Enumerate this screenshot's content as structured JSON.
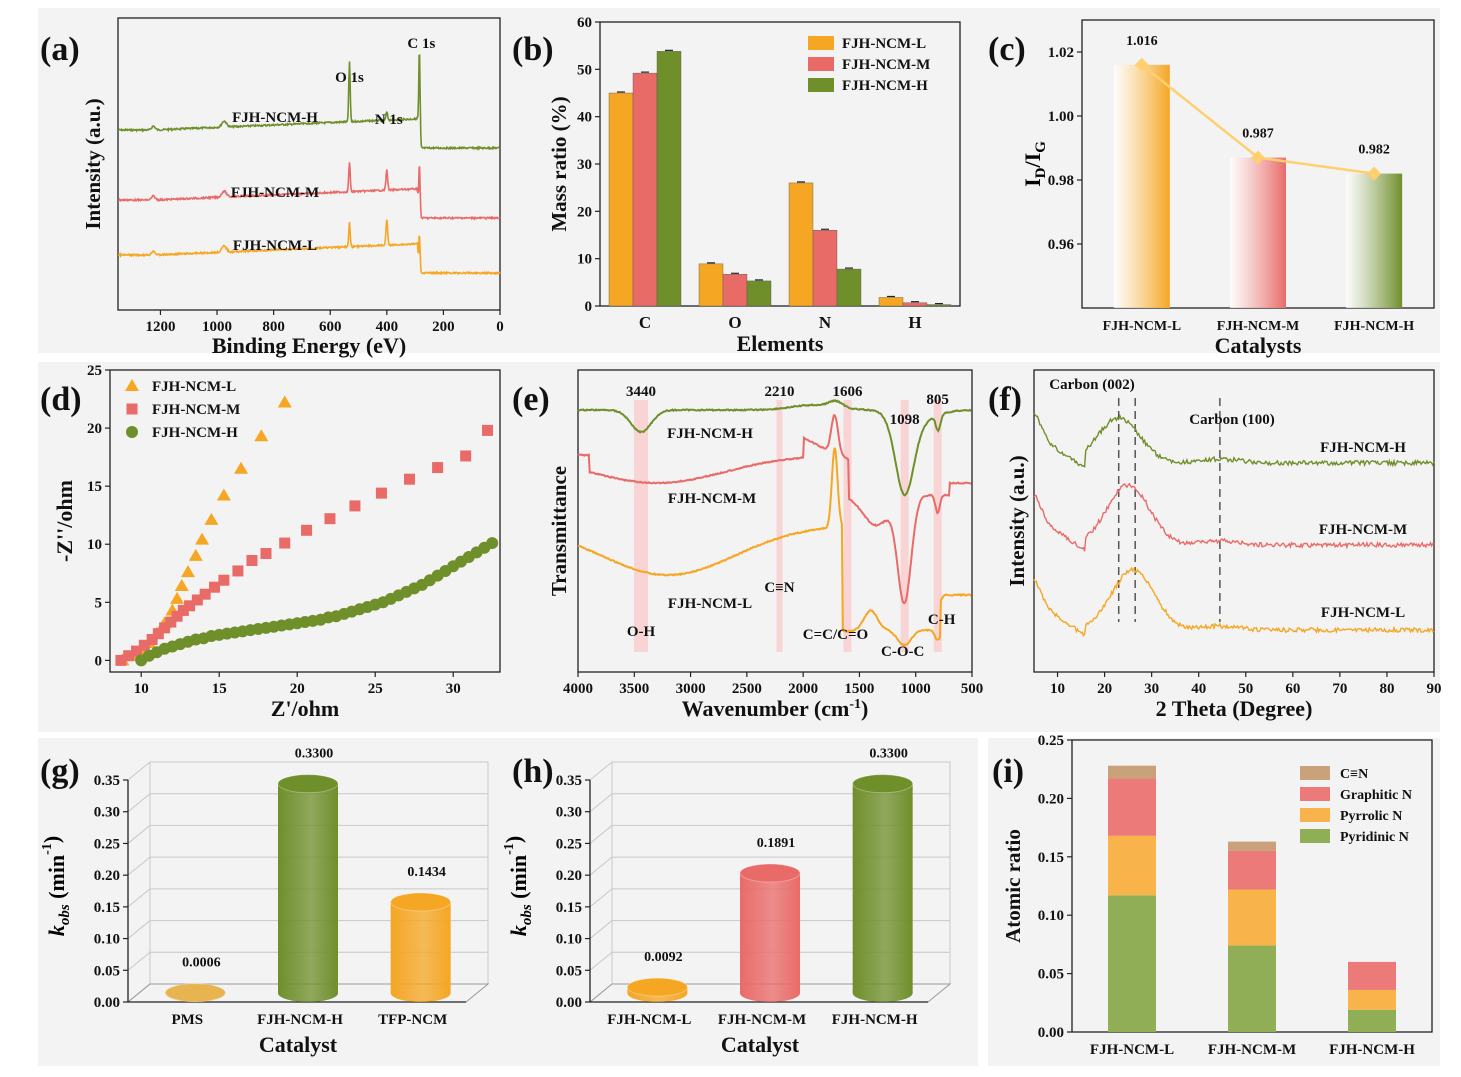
{
  "colors": {
    "L": "#f5a623",
    "M": "#e96b68",
    "H": "#6f8f2b",
    "raman_line": "#ffcf70",
    "bg": "#f3f3f3",
    "grid": "#c8c8c8",
    "kind_bar": "#c9a27b"
  },
  "panel_labels": [
    "(a)",
    "(b)",
    "(c)",
    "(d)",
    "(e)",
    "(f)",
    "(g)",
    "(h)",
    "(i)"
  ],
  "chart_data": [
    {
      "panel": "(a)",
      "type": "line",
      "xlabel": "Binding Energy (eV)",
      "ylabel": "Intensity (a.u.)",
      "xlim": [
        1350,
        0
      ],
      "xticks": [
        1200,
        1000,
        800,
        600,
        400,
        200,
        0
      ],
      "series": [
        {
          "name": "FJH-NCM-H",
          "color_key": "H"
        },
        {
          "name": "FJH-NCM-M",
          "color_key": "M"
        },
        {
          "name": "FJH-NCM-L",
          "color_key": "L"
        }
      ],
      "peaks": [
        {
          "label": "C 1s",
          "x": 285
        },
        {
          "label": "O 1s",
          "x": 532
        },
        {
          "label": "N 1s",
          "x": 400
        }
      ]
    },
    {
      "panel": "(b)",
      "type": "bar",
      "xlabel": "Elements",
      "ylabel": "Mass ratio (%)",
      "ylim": [
        0,
        60
      ],
      "yticks": [
        0,
        10,
        20,
        30,
        40,
        50,
        60
      ],
      "categories": [
        "C",
        "O",
        "N",
        "H"
      ],
      "series": [
        {
          "name": "FJH-NCM-L",
          "color_key": "L",
          "values": [
            45.0,
            8.9,
            26.0,
            1.8
          ]
        },
        {
          "name": "FJH-NCM-M",
          "color_key": "M",
          "values": [
            49.2,
            6.7,
            16.0,
            0.7
          ]
        },
        {
          "name": "FJH-NCM-H",
          "color_key": "H",
          "values": [
            53.8,
            5.3,
            7.8,
            0.3
          ]
        }
      ],
      "legend": "top-right"
    },
    {
      "panel": "(c)",
      "type": "bar",
      "xlabel": "Catalysts",
      "ylabel": "I",
      "ylabel_sub1": "D",
      "ylabel_mid": "/I",
      "ylabel_sub2": "G",
      "ylim": [
        0.94,
        1.03
      ],
      "yticks": [
        "0.96",
        "0.98",
        "1.00",
        "1.02"
      ],
      "categories": [
        "FJH-NCM-L",
        "FJH-NCM-M",
        "FJH-NCM-H"
      ],
      "values": [
        1.016,
        0.987,
        0.982
      ],
      "value_labels": [
        "1.016",
        "0.987",
        "0.982"
      ]
    },
    {
      "panel": "(d)",
      "type": "scatter",
      "xlabel": "Z'/ohm",
      "ylabel": "-Z''/ohm",
      "xlim": [
        8,
        33
      ],
      "ylim": [
        -1,
        25
      ],
      "xticks": [
        10,
        15,
        20,
        25,
        30
      ],
      "yticks": [
        0,
        5,
        10,
        15,
        20,
        25
      ],
      "legend": "top-left",
      "series": [
        {
          "name": "FJH-NCM-L",
          "color_key": "L",
          "marker": "triangle",
          "points": [
            [
              8.8,
              0.0
            ],
            [
              9.4,
              0.4
            ],
            [
              10.0,
              0.9
            ],
            [
              10.5,
              1.5
            ],
            [
              11.0,
              2.3
            ],
            [
              11.5,
              3.2
            ],
            [
              12.0,
              4.3
            ],
            [
              12.3,
              5.3
            ],
            [
              12.6,
              6.4
            ],
            [
              13.0,
              7.6
            ],
            [
              13.5,
              9.0
            ],
            [
              13.9,
              10.4
            ],
            [
              14.5,
              12.1
            ],
            [
              15.3,
              14.2
            ],
            [
              16.4,
              16.5
            ],
            [
              17.7,
              19.3
            ],
            [
              19.2,
              22.2
            ]
          ]
        },
        {
          "name": "FJH-NCM-M",
          "color_key": "M",
          "marker": "square",
          "points": [
            [
              8.7,
              0.0
            ],
            [
              9.2,
              0.4
            ],
            [
              9.7,
              0.8
            ],
            [
              10.2,
              1.3
            ],
            [
              10.7,
              1.8
            ],
            [
              11.1,
              2.3
            ],
            [
              11.5,
              2.8
            ],
            [
              11.9,
              3.3
            ],
            [
              12.3,
              3.8
            ],
            [
              12.7,
              4.3
            ],
            [
              13.1,
              4.7
            ],
            [
              13.6,
              5.2
            ],
            [
              14.1,
              5.7
            ],
            [
              14.7,
              6.3
            ],
            [
              15.3,
              6.9
            ],
            [
              16.2,
              7.7
            ],
            [
              17.1,
              8.6
            ],
            [
              18.0,
              9.2
            ],
            [
              19.2,
              10.1
            ],
            [
              20.6,
              11.2
            ],
            [
              22.1,
              12.2
            ],
            [
              23.7,
              13.3
            ],
            [
              25.4,
              14.4
            ],
            [
              27.2,
              15.6
            ],
            [
              29.0,
              16.6
            ],
            [
              30.8,
              17.6
            ],
            [
              32.2,
              19.8
            ]
          ]
        },
        {
          "name": "FJH-NCM-H",
          "color_key": "H",
          "marker": "circle",
          "points": [
            [
              10.0,
              0.0
            ],
            [
              10.5,
              0.4
            ],
            [
              11.0,
              0.7
            ],
            [
              11.5,
              1.0
            ],
            [
              12.0,
              1.2
            ],
            [
              12.5,
              1.4
            ],
            [
              13.0,
              1.6
            ],
            [
              13.5,
              1.8
            ],
            [
              14.0,
              1.9
            ],
            [
              14.5,
              2.1
            ],
            [
              15.0,
              2.2
            ],
            [
              15.5,
              2.3
            ],
            [
              16.0,
              2.4
            ],
            [
              16.5,
              2.5
            ],
            [
              17.0,
              2.6
            ],
            [
              17.5,
              2.7
            ],
            [
              18.0,
              2.8
            ],
            [
              18.5,
              2.9
            ],
            [
              19.0,
              3.0
            ],
            [
              19.5,
              3.1
            ],
            [
              20.0,
              3.2
            ],
            [
              20.5,
              3.3
            ],
            [
              21.0,
              3.4
            ],
            [
              21.5,
              3.5
            ],
            [
              22.0,
              3.7
            ],
            [
              22.5,
              3.8
            ],
            [
              23.0,
              4.0
            ],
            [
              23.5,
              4.2
            ],
            [
              24.0,
              4.4
            ],
            [
              24.5,
              4.6
            ],
            [
              25.0,
              4.8
            ],
            [
              25.5,
              5.0
            ],
            [
              26.0,
              5.3
            ],
            [
              26.5,
              5.6
            ],
            [
              27.0,
              5.9
            ],
            [
              27.5,
              6.2
            ],
            [
              28.0,
              6.5
            ],
            [
              28.5,
              6.9
            ],
            [
              29.0,
              7.3
            ],
            [
              29.5,
              7.7
            ],
            [
              30.0,
              8.1
            ],
            [
              30.5,
              8.5
            ],
            [
              31.0,
              8.9
            ],
            [
              31.5,
              9.3
            ],
            [
              32.0,
              9.7
            ],
            [
              32.5,
              10.1
            ]
          ]
        }
      ]
    },
    {
      "panel": "(e)",
      "type": "line",
      "xlabel": "Wavenumber (cm",
      "xlabel_sup": "-1",
      "xlabel_end": ")",
      "ylabel": "Transmittance",
      "xlim": [
        4000,
        500
      ],
      "xticks": [
        4000,
        3500,
        3000,
        2500,
        2000,
        1500,
        1000,
        500
      ],
      "series": [
        {
          "name": "FJH-NCM-H",
          "color_key": "H"
        },
        {
          "name": "FJH-NCM-M",
          "color_key": "M"
        },
        {
          "name": "FJH-NCM-L",
          "color_key": "L"
        }
      ],
      "peak_labels": [
        "3440",
        "2210",
        "1606",
        "1098",
        "805"
      ],
      "peak_positions": [
        3440,
        2210,
        1606,
        1098,
        805
      ],
      "bond_labels": [
        "O-H",
        "C≡N",
        "C=C/C=O",
        "C-O-C",
        "C-H"
      ]
    },
    {
      "panel": "(f)",
      "type": "line",
      "xlabel": "2 Theta (Degree)",
      "ylabel": "Intensity (a.u.)",
      "xlim": [
        5,
        90
      ],
      "xticks": [
        10,
        20,
        30,
        40,
        50,
        60,
        70,
        80,
        90
      ],
      "series": [
        {
          "name": "FJH-NCM-H",
          "color_key": "H"
        },
        {
          "name": "FJH-NCM-M",
          "color_key": "M"
        },
        {
          "name": "FJH-NCM-L",
          "color_key": "L"
        }
      ],
      "annotations": [
        "Carbon (002)",
        "Carbon (100)"
      ],
      "reference_lines": [
        23,
        26.5,
        44.5
      ]
    },
    {
      "panel": "(g)",
      "type": "bar",
      "xlabel": "Catalyst",
      "ylabel": "k",
      "ylabel_sub": "obs",
      "ylabel_unit": " (min",
      "ylabel_sup": "-1",
      "ylabel_end": ")",
      "ylim": [
        0,
        0.35
      ],
      "yticks": [
        "0.00",
        "0.05",
        "0.10",
        "0.15",
        "0.20",
        "0.25",
        "0.30",
        "0.35"
      ],
      "categories": [
        "PMS",
        "FJH-NCM-H",
        "TFP-NCM"
      ],
      "values": [
        0.0006,
        0.33,
        0.1434
      ],
      "value_labels": [
        "0.0006",
        "0.3300",
        "0.1434"
      ],
      "bar_colors": [
        "#e7b450",
        "#6f8f2b",
        "#f5a623"
      ]
    },
    {
      "panel": "(h)",
      "type": "bar",
      "xlabel": "Catalyst",
      "ylabel": "k",
      "ylabel_sub": "obs",
      "ylabel_unit": " (min",
      "ylabel_sup": "-1",
      "ylabel_end": ")",
      "ylim": [
        0,
        0.35
      ],
      "yticks": [
        "0.00",
        "0.05",
        "0.10",
        "0.15",
        "0.20",
        "0.25",
        "0.30",
        "0.35"
      ],
      "categories": [
        "FJH-NCM-L",
        "FJH-NCM-M",
        "FJH-NCM-H"
      ],
      "values": [
        0.0092,
        0.1891,
        0.33
      ],
      "value_labels": [
        "0.0092",
        "0.1891",
        "0.3300"
      ],
      "bar_colors": [
        "#f5a623",
        "#e96b68",
        "#6f8f2b"
      ]
    },
    {
      "panel": "(i)",
      "type": "bar",
      "xlabel": "",
      "ylabel": "Atomic ratio",
      "ylim": [
        0,
        0.25
      ],
      "yticks": [
        "0.00",
        "0.05",
        "0.10",
        "0.15",
        "0.20",
        "0.25"
      ],
      "categories": [
        "FJH-NCM-L",
        "FJH-NCM-M",
        "FJH-NCM-H"
      ],
      "stacked": true,
      "series": [
        {
          "name": "Pyridinic N",
          "color": "#8fae56",
          "values": [
            0.117,
            0.074,
            0.019
          ]
        },
        {
          "name": "Pyrrolic N",
          "color": "#f8b44a",
          "values": [
            0.051,
            0.048,
            0.017
          ]
        },
        {
          "name": "Graphitic N",
          "color": "#ec7a79",
          "values": [
            0.049,
            0.033,
            0.024
          ]
        },
        {
          "name": "C≡N",
          "color": "#c9a27b",
          "values": [
            0.011,
            0.008,
            0.0
          ]
        }
      ],
      "legend_order": [
        "C≡N",
        "Graphitic N",
        "Pyrrolic N",
        "Pyridinic N"
      ]
    }
  ]
}
